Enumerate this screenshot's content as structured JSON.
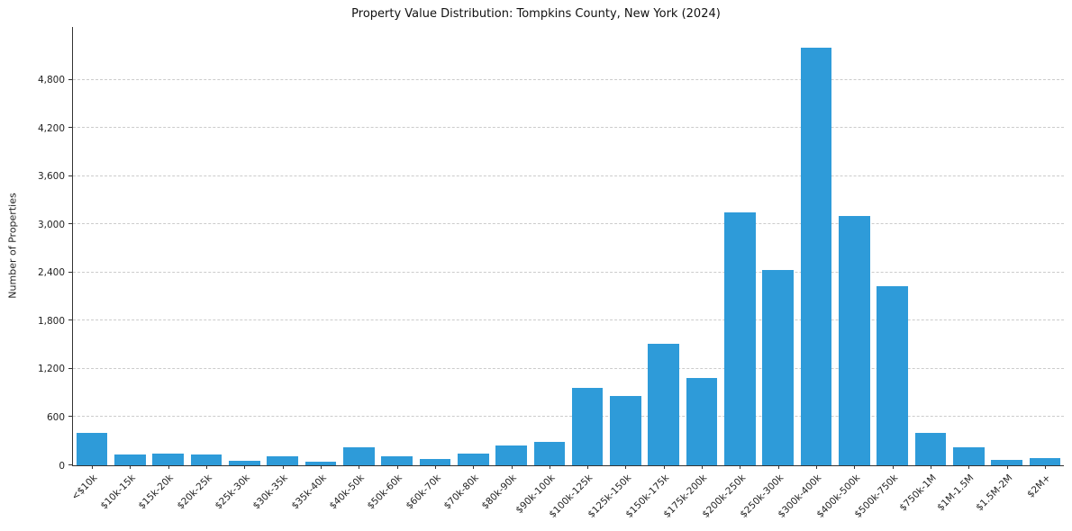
{
  "chart_data": {
    "type": "bar",
    "title": "Property Value Distribution: Tompkins County, New York (2024)",
    "xlabel": "",
    "ylabel": "Number of Properties",
    "bar_color": "#2e9bd9",
    "grid": "horizontal-dashed",
    "ylim": [
      0,
      5460
    ],
    "yticks": [
      {
        "value": 0,
        "label": "0"
      },
      {
        "value": 600,
        "label": "600"
      },
      {
        "value": 1200,
        "label": "1,200"
      },
      {
        "value": 1800,
        "label": "1,800"
      },
      {
        "value": 2400,
        "label": "2,400"
      },
      {
        "value": 3000,
        "label": "3,000"
      },
      {
        "value": 3600,
        "label": "3,600"
      },
      {
        "value": 4200,
        "label": "4,200"
      },
      {
        "value": 4800,
        "label": "4,800"
      }
    ],
    "categories": [
      "<$10k",
      "$10k-15k",
      "$15k-20k",
      "$20k-25k",
      "$25k-30k",
      "$30k-35k",
      "$35k-40k",
      "$40k-50k",
      "$50k-60k",
      "$60k-70k",
      "$70k-80k",
      "$80k-90k",
      "$90k-100k",
      "$100k-125k",
      "$125k-150k",
      "$150k-175k",
      "$175k-200k",
      "$200k-250k",
      "$250k-300k",
      "$300k-400k",
      "$400k-500k",
      "$500k-750k",
      "$750k-1M",
      "$1M-1.5M",
      "$1.5M-2M",
      "$2M+"
    ],
    "values": [
      400,
      140,
      150,
      140,
      60,
      110,
      50,
      220,
      110,
      80,
      150,
      250,
      290,
      960,
      860,
      1510,
      1090,
      3150,
      2430,
      5200,
      3110,
      2230,
      400,
      230,
      70,
      90
    ]
  }
}
